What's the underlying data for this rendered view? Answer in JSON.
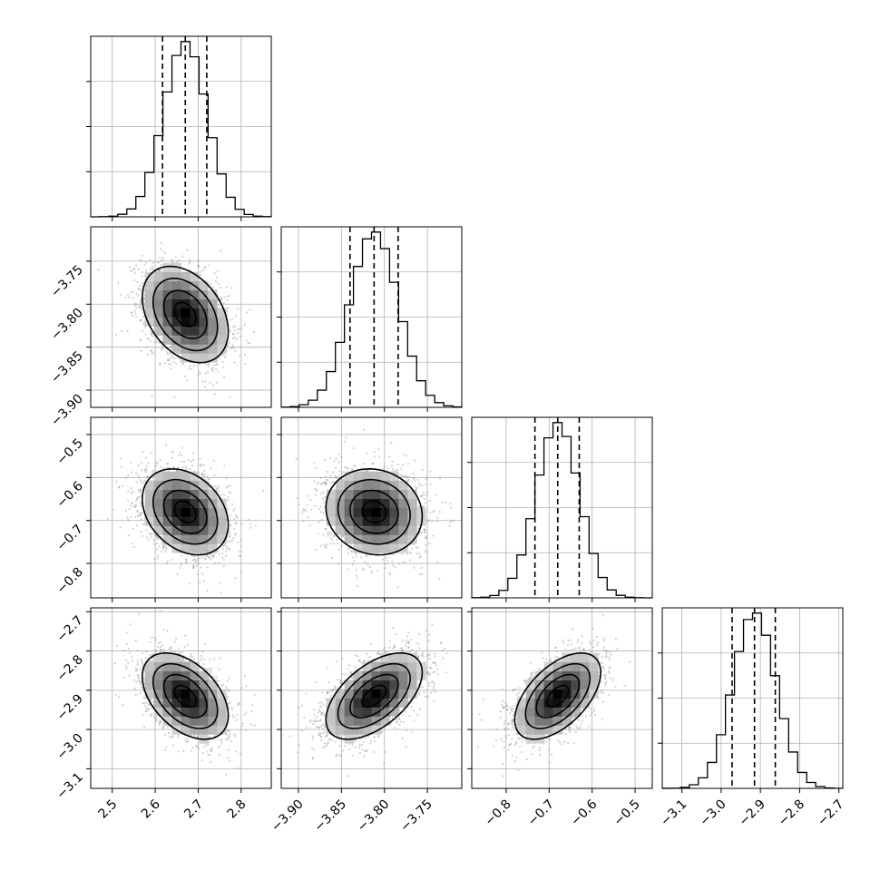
{
  "chart_data": {
    "type": "corner",
    "grid": true,
    "parameters": [
      {
        "index": 0,
        "median": 2.67,
        "sigma": 0.05,
        "quantiles": [
          2.617,
          2.67,
          2.72
        ],
        "range": [
          2.45,
          2.87
        ],
        "ticks": [
          2.5,
          2.6,
          2.7,
          2.8
        ],
        "tick_labels": [
          "2.5",
          "2.6",
          "2.7",
          "2.8"
        ]
      },
      {
        "index": 1,
        "median": -3.812,
        "sigma": 0.028,
        "quantiles": [
          -3.84,
          -3.812,
          -3.784
        ],
        "range": [
          -3.92,
          -3.71
        ],
        "ticks": [
          -3.9,
          -3.85,
          -3.8,
          -3.75
        ],
        "tick_labels": [
          "−3.90",
          "−3.85",
          "−3.80",
          "−3.75"
        ]
      },
      {
        "index": 2,
        "median": -0.68,
        "sigma": 0.05,
        "quantiles": [
          -0.733,
          -0.68,
          -0.63
        ],
        "range": [
          -0.88,
          -0.46
        ],
        "ticks": [
          -0.8,
          -0.7,
          -0.6,
          -0.5
        ],
        "tick_labels": [
          "−0.8",
          "−0.7",
          "−0.6",
          "−0.5"
        ]
      },
      {
        "index": 3,
        "median": -2.915,
        "sigma": 0.055,
        "quantiles": [
          -2.972,
          -2.915,
          -2.862
        ],
        "range": [
          -3.15,
          -2.69
        ],
        "ticks": [
          -3.1,
          -3.0,
          -2.9,
          -2.8,
          -2.7
        ],
        "tick_labels": [
          "−3.1",
          "−3.0",
          "−2.9",
          "−2.8",
          "−2.7"
        ]
      }
    ],
    "correlations": [
      {
        "row": 1,
        "col": 0,
        "rho": -0.35
      },
      {
        "row": 2,
        "col": 0,
        "rho": -0.3
      },
      {
        "row": 2,
        "col": 1,
        "rho": -0.1
      },
      {
        "row": 3,
        "col": 0,
        "rho": -0.45
      },
      {
        "row": 3,
        "col": 1,
        "rho": 0.55
      },
      {
        "row": 3,
        "col": 2,
        "rho": 0.55
      }
    ],
    "contour_levels_sigma": [
      0.5,
      1.0,
      1.5,
      2.0
    ],
    "histogram_bins": 20
  }
}
